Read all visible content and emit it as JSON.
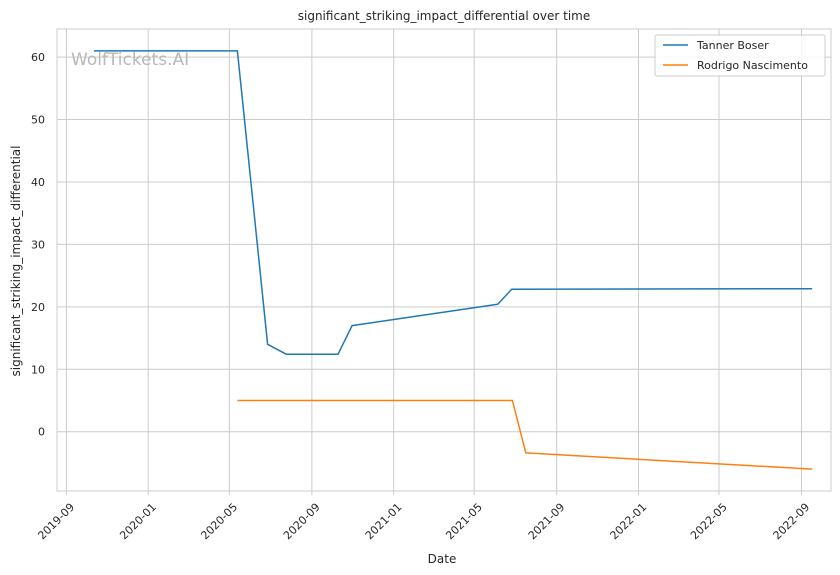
{
  "watermark": "WolfTickets.AI",
  "chart_data": {
    "type": "line",
    "title": "significant_striking_impact_differential over time",
    "xlabel": "Date",
    "ylabel": "significant_striking_impact_differential",
    "x_ticks": [
      "2019-09",
      "2020-01",
      "2020-05",
      "2020-09",
      "2021-01",
      "2021-05",
      "2021-09",
      "2022-01",
      "2022-05",
      "2022-09"
    ],
    "y_ticks": [
      0,
      10,
      20,
      30,
      40,
      50,
      60
    ],
    "xlim": [
      "2019-08-18",
      "2022-10-15"
    ],
    "ylim": [
      -9.5,
      64.5
    ],
    "grid": true,
    "legend_position": "top-right",
    "series": [
      {
        "name": "Tanner Boser",
        "color": "#1f77b4",
        "points": [
          [
            "2019-10-12",
            61.0
          ],
          [
            "2020-05-13",
            61.0
          ],
          [
            "2020-06-27",
            14.0
          ],
          [
            "2020-07-25",
            12.4
          ],
          [
            "2020-10-10",
            12.4
          ],
          [
            "2020-10-31",
            17.0
          ],
          [
            "2021-06-05",
            20.4
          ],
          [
            "2021-06-26",
            22.8
          ],
          [
            "2022-09-17",
            22.9
          ]
        ]
      },
      {
        "name": "Rodrigo Nascimento",
        "color": "#ff7f0e",
        "points": [
          [
            "2020-05-13",
            5.0
          ],
          [
            "2021-06-27",
            5.0
          ],
          [
            "2021-07-17",
            -3.4
          ],
          [
            "2022-09-17",
            -6.0
          ]
        ]
      }
    ]
  }
}
